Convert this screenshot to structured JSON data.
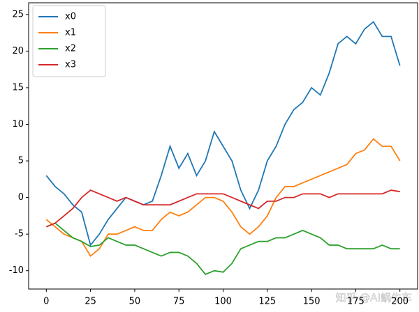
{
  "chart_data": {
    "type": "line",
    "x": [
      0,
      5,
      10,
      15,
      20,
      25,
      30,
      35,
      40,
      45,
      50,
      55,
      60,
      65,
      70,
      75,
      80,
      85,
      90,
      95,
      100,
      105,
      110,
      115,
      120,
      125,
      130,
      135,
      140,
      145,
      150,
      155,
      160,
      165,
      170,
      175,
      180,
      185,
      190,
      195,
      200
    ],
    "series": [
      {
        "name": "x0",
        "color": "#1f77b4",
        "values": [
          3,
          1.5,
          0.5,
          -1,
          -2,
          -6.5,
          -5,
          -3,
          -1.5,
          0,
          -0.5,
          -1,
          -0.5,
          3,
          7,
          4,
          6,
          3,
          5,
          9,
          7,
          5,
          1,
          -1.5,
          1,
          5,
          7,
          10,
          12,
          13,
          15,
          14,
          17,
          21,
          22,
          21,
          23,
          24,
          22,
          22,
          18
        ]
      },
      {
        "name": "x1",
        "color": "#ff7f0e",
        "values": [
          -3,
          -4,
          -5,
          -5.5,
          -6,
          -8,
          -7,
          -5,
          -5,
          -4.5,
          -4,
          -4.5,
          -4.5,
          -3,
          -2,
          -2.5,
          -2,
          -1,
          0,
          0,
          -0.5,
          -2,
          -4,
          -5,
          -4,
          -2.5,
          0,
          1.5,
          1.5,
          2,
          2.5,
          3,
          3.5,
          4,
          4.5,
          6,
          6.5,
          8,
          7,
          7,
          5
        ]
      },
      {
        "name": "x2",
        "color": "#2ca02c",
        "values": [
          -4,
          -3.5,
          -4.5,
          -5.5,
          -6,
          -6.7,
          -6.5,
          -5.5,
          -6,
          -6.5,
          -6.5,
          -7,
          -7.5,
          -8,
          -7.5,
          -7.5,
          -8,
          -9,
          -10.5,
          -10,
          -10.2,
          -9,
          -7,
          -6.5,
          -6,
          -6,
          -5.5,
          -5.5,
          -5,
          -4.5,
          -5,
          -5.5,
          -6.5,
          -6.5,
          -7,
          -7,
          -7,
          -7,
          -6.5,
          -7,
          -7
        ]
      },
      {
        "name": "x3",
        "color": "#d62728",
        "values": [
          -4,
          -3.5,
          -2.5,
          -1.5,
          0,
          1,
          0.5,
          0,
          -0.5,
          0,
          -0.5,
          -1,
          -1,
          -1,
          -1,
          -0.5,
          0,
          0.5,
          0.5,
          0.5,
          0.5,
          0,
          -0.5,
          -1,
          -1.5,
          -0.5,
          -0.5,
          0,
          0,
          0.5,
          0.5,
          0.5,
          0,
          0.5,
          0.5,
          0.5,
          0.5,
          0.5,
          0.5,
          1,
          0.8
        ]
      }
    ],
    "xlim": [
      -10,
      210
    ],
    "ylim": [
      -12.5,
      26.6
    ],
    "xticks": [
      0,
      25,
      50,
      75,
      100,
      125,
      150,
      175,
      200
    ],
    "yticks": [
      -10,
      -5,
      0,
      5,
      10,
      15,
      20,
      25
    ],
    "legend": "upper left",
    "watermark": "知乎 @AI蜗牛车"
  }
}
